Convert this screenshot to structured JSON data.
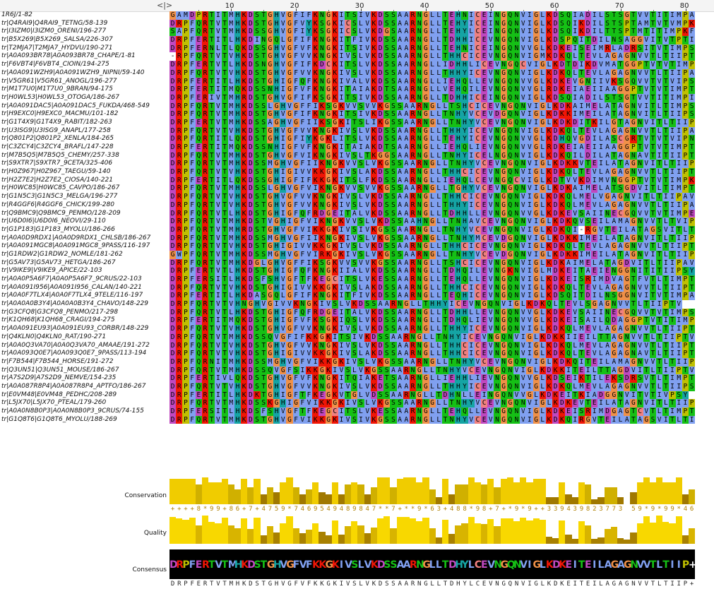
{
  "ruler": {
    "ticks": [
      "10",
      "20",
      "30",
      "40",
      "50",
      "60",
      "70",
      "80"
    ],
    "handle": "<|>"
  },
  "sequences": [
    {
      "name": "1R6J/1-82",
      "seq": "GAMDPRTITMHKDSTGHVGFIFKNGKITSIVKDSSAARNGLLTEHNICEINGQNVIGLKDSQIADILSTSGTVVTITIMPAF"
    },
    {
      "name": "tr|Q4RAI9|Q4RAI9_TETNG/58-139",
      "seq": "DRPFQRTVTMHKDSTGHVGFVYKSGKICSLVKDSSAARNGLLTEHYICEINGQNVIGLKDSQIKDILSTSPTAMTVTVMPKF"
    },
    {
      "name": "tr|I3IZM0|I3IZM0_ORENI/196-277",
      "seq": "SAPFQRTVTMHKDSSGHVGFIYKSGKICSLVKDGSAARNGLLTEHYLCEINGQNVIGLKDSQIKDILTTSPTMTITIMPKF"
    },
    {
      "name": "tr|B5X269|B5X269_SALSA/226-307",
      "seq": "DRPFERTITLHKDINGQLGFIFKNGKITFIVKDSSAARNGLLTDHHICEVNGQNVIGLKDSPQITDILNSAGGVITVTPTI"
    },
    {
      "name": "tr|T2MJA7|T2MJA7_HYDVU/190-271",
      "seq": "DRPFERNLTLQKDSSGHVGFVFKNGKITSIVKDSSAARNGLLTEHNICEINGQNVVGLKDKEISEIMRLADRSITVTIMPSF"
    },
    {
      "name": "tr|A0A093BR78|A0A093BR78_CHAPE/1-81",
      "seq": "-RPFQRTVTVHKDSTGHVGFVVKNGKIVSLVKDSSAARNGLLTHHCICEVNGQNVIGMKDKQLTEVLAGAGNVVTLTIIPTV"
    },
    {
      "name": "tr|F6VBT4|F6VBT4_CIOIN/194-275",
      "seq": "DRPFERTVTLHKDSNGHVGFIFKDCKITSLVKDSSAARNGLLIDHHLICEVNGQCVIGLKDTDIKDVMATGGPTVTVTIMPTE"
    },
    {
      "name": "tr|A0A091WZH9|A0A091WZH9_NIPNI/59-140",
      "seq": "DRPFQRTVTVHKDSTGHVGFVVKNGKIVSLVKDSSAARNGLLTHHYICEVNGQNVIGLKDKQLTEVLAGAGNVVTLTIIPAV"
    },
    {
      "name": "tr|V5GR61|V5GR61_ANOGL/196-277",
      "seq": "DRPFERTITLHKDSTGHIGFQFKNGKIVALVKDSSAARNGLLIEHQLLEVNGQNVVGLKDKEVGNIIVKSGQVVTVTVIPSF"
    },
    {
      "name": "tr|M1T7U0|M1T7U0_9BRAN/94-175",
      "seq": "DRPFERTITMQKDSSNHIGFVFKNGKITAIAKDTSAARNGLLVEHQILEVNGQNVVGLRDKEIAEIIAAGGPTVTVTIMPTY"
    },
    {
      "name": "tr|H0WL53|H0WL53_OTOGA/186-267",
      "seq": "DRPFERIVTMHRDSTGHVGFIFKSGKITSIVKDSSAARNGLLTDHHICEINGQNVIGLKDSQIADILSTSGTVVTITIMPIV"
    },
    {
      "name": "tr|A0A091DAC5|A0A091DAC5_FUKDA/468-549",
      "seq": "DRPFQRTVTMHKDSSLGHVGFFIKSGKVVSVVKGSSAARNGLLTSHCICEVNGQNVIGLKDKAIMELATAGNVITLTIMPSV"
    },
    {
      "name": "tr|H9EXC0|H9EXC0_MACMU/101-182",
      "seq": "DRPFQRTVTMHKDSTGHVGFIFKNGKITSIVKDSSAARNGLLTNHYVCEVDGQNVIGLKDKKIMEILATAGNVITLTIIPSV"
    },
    {
      "name": "tr|G1T4X9|G1T4X9_RABIT/182-263",
      "seq": "DRPFERTVTMHKDSSAGHVGFIIKSGKITSLIKGSSAARNGLLTNHYVCEVNGQNVIGLKDKDITKILGTAGNVITLTIIPSV"
    },
    {
      "name": "tr|U3ISG9|U3ISG9_ANAPL/177-258",
      "seq": "DRPFQRTVTVHKDSTGHVGFVVKNGKIVSLVKDSSAARNGLLTHHYICEVNGQNVIGLKDKQLTEVLAGAGNVVTLTIIPAV"
    },
    {
      "name": "tr|Q801P2|Q801P2_XENLA/184-265",
      "seq": "DRPFQRTITLQKDSTGHIGFIYKGKLITSLVKDSSAARNGLLTEHYICEVNGQNVVGLKDHQVGDILASCGRTVTVTVIPNK"
    },
    {
      "name": "tr|C3ZCY4|C3ZCY4_BRAFL/147-228",
      "seq": "DRPFERTITMQKDSSNHIGFVFKNGKITAIAKDTSAARNGLLIEHQLIEVNGQNVVGLRDKEIAEIIAAGGPTVTVTIMPTY"
    },
    {
      "name": "tr|M7B5Q5|M7B5Q5_CHEMY/257-338",
      "seq": "DRPFQRTVTMHKDSTGHVGFVIKNGKIVSLTKGGSAARNGLLTNHYICELNGQNVIGLKDKQILDILATAGNAVTITIIPTV"
    },
    {
      "name": "tr|S9XTR7|S9XTR7_9CETA/325-406",
      "seq": "DRPFQRTVTMHKDSSMGHVGFIIKNGKVVSLVKGSSAARNGLLTNHYVCEVNGQNVIGLKDKKVTEILATAGNVITLTIIPTV"
    },
    {
      "name": "tr|H0Z967|H0Z967_TAEGU/59-140",
      "seq": "DRPFQRTVTVHKDSTGHIGIVVKKGKIVSLAKDSSAARNGLLTHHCICEVNGQNVIGLKDKQLTEVLAGAGNVVTLTIIPTV"
    },
    {
      "name": "tr|H2Z7E2|H2Z7E2_CIOSA/140-221",
      "seq": "DRPFERTITLQKDSSGHIGFIFKKGKITSLFKDSSAARNGLLIEHQLCEVNGQCVIGLKDTVVKDIMVNGGPTVTVTIMPKF"
    },
    {
      "name": "tr|H0WC85|H0WC85_CAVPO/186-267",
      "seq": "DRPFQRTVTMHKDSSLGHVGFVIKNGKVVSVVKGSSAARNGLLTGHYVCEVNGQNVIGLKDKAIMELATSGDVITLTIMPTV"
    },
    {
      "name": "tr|G1N5C3|G1N5C3_MELGA/196-277",
      "seq": "DRPFQRTVTVHKDSTGHVGFVVKNGKIVSLVKDSSAARNGLLTHHCICEVNGQNVIGLKDKQLMELVGAGNVITLTIIPAV"
    },
    {
      "name": "tr|R4GGF6|R4GGF6_CHICK/199-280",
      "seq": "DRPFQRTVTVHKDSTGHVGFVVKNGKIVSLVKDSSAARNGLLTHHYICEVNGQNVIGLKDKQLMEVLAGAGNVVTLTIIPAV"
    },
    {
      "name": "tr|Q9BMC9|Q9BMC9_PENMO/128-209",
      "seq": "DRPFQRTVTLHKDSTGHIGFQFRDGEITALVKDSSAARNGLLTDHHLLEVNGQNVVGLKDKEVSAIINECGQVVTVTIMPEF"
    },
    {
      "name": "tr|U6D0I6|U6D0I6_NEOVI/29-110",
      "seq": "DRPFQRTVTMHKDSTVGHIGFVIKNGKVVSLVKDSSAAHNGLLTNHAVCEVNGQNVIGLKDKQVSEILAMAGNVVTLTVIPTV"
    },
    {
      "name": "tr|G1P183|G1P183_MYOLU/186-266",
      "seq": "DRPFQRTVTMHRDSTGHVGFVIKKGKIVSIVKGSSAARNGLLTNHYVCEVNGQNVIGLKDKQI-RGVTEILATAGSVITLTIPTV"
    },
    {
      "name": "tr|A0A0D9RDX1|A0A0D9RDX1_CHLSB/186-267",
      "seq": "DRPFQRTVTMHKDSSMGHVGFIIKNGKIVSLVKGSSAARNGLLTNHYMCEVDGQNVIGLKDKKIMEILATAGNVITLTIIPSV"
    },
    {
      "name": "tr|A0A091MGC8|A0A091MGC8_9PASS/116-197",
      "seq": "DRPFQRTVTVHKDSTGHIGIVVKKGKIVSLVKDSSAARNGLLTHHCICEVNGQNVIGLKDKQLTEVLAGAGNVVTLTIIPTV"
    },
    {
      "name": "tr|G1RDW2|G1RDW2_NOMLE/181-262",
      "seq": "GWPFQRTVTMHKDSSMGHVGFVIRKGKIVSLVKGSSAARNGLLTNHYVCEVDGQNVIGLKDKKIMEILATAGNVITLTIIPSV"
    },
    {
      "name": "tr|G5AV73|G5AV73_HETGA/186-267",
      "seq": "DRPFQRTVTMHKDGLGHVGFFIKSGKVVSVVKGSSAARNGLLTSHCICEVNGQNVIGLKDKAIMELATAGDVITLTIIPAV"
    },
    {
      "name": "tr|V9IKE9|V9IKE9_APICE/22-103",
      "seq": "DRPFERTVTLHKDSTGHIGFQFKNGKIIALVKDSSAARNGLLTDHQILEVNGKNVIGLMDKEITAEIENGGNITITIIPSY"
    },
    {
      "name": "tr|A0A0P5A6F7|A0A0P5A6F7_9CRUS/22-103",
      "seq": "DRPFERSITLHKDSFSHVGFTFKEGCITSLVKESSAARNGLLTEHQLLEVNGQNVIGLKDKEISRIMDVAGTFVTLTIMPTF"
    },
    {
      "name": "tr|A0A091I956|A0A091I956_CALAN/140-221",
      "seq": "DRPFQRTVTVHKDSTGHIGIVVKKGKIVSLAKDSSAARNGLLTHHCICEVNGQNVIGLKDKQLTEVLAGAGNVVTLTIIPTV"
    },
    {
      "name": "tr|A0A0F7TLX4|A0A0F7TLX4_9TELE/116-197",
      "seq": "DRPFERTITLHKDASGQLGFIFKNGKITFIVKDSSAARNGLLTEQHICEVNGQNVIGLKDSQITDILNSGGNVITVTIMPAV"
    },
    {
      "name": "tr|A0A0A0B3Y4|A0A0A0B3Y4_CHAVO/148-229",
      "seq": "DRPFQRTVTVHNGHVGIVVKNGKIVSLVKDSSAARNGLLTHHYICEVNGQNVIGLKDKQLTEVLSGAGNVVTLTIIPTV"
    },
    {
      "name": "tr|G3CFQ8|G3CFQ8_PENMO/217-298",
      "seq": "DRPFQRTVTLHKDSTGHIGFQFRDGEITALVKDSSAARNGLLTDHHLLEVNGQNVVGLKDKEVSAIINECGQVVTVTIMPSF"
    },
    {
      "name": "tr|K1QH68|K1QH68_CRAGI/194-275",
      "seq": "DRPFERTITMQKDSTGHIGFVFKSGKIQSLVKDSSAARNGLLTDHQLIEVNGQNVVGLKDKEISAILQDAGGPTVTITIMPTY"
    },
    {
      "name": "tr|A0A091EU93|A0A091EU93_CORBR/148-229",
      "seq": "DRPFQRTVTVHKDSTGHVGFVVKNGKIVSLVKDSSAARNGLLTHHYICEVNGQNVIGLKDKQLMEVLAGAGNVVTLTIIPTV"
    },
    {
      "name": "tr|Q4KLN0|Q4KLN0_RAT/190-271",
      "seq": "DRPFQRTVTMHKDSSQVGFIFKKGKITSIVKDSSAARNGLLTNHYICEVNGQNVIGLKDKKIIEILTTAGNVVTLTIIPTV"
    },
    {
      "name": "tr|A0A0Q3VA70|A0A0Q3VA70_AMAAE/191-272",
      "seq": "DRPFQRTVTVHKDSTGHVGFVVKNGKIVSLVKDSSAARNGLLTHHCICEVNGQNVIGLKDKQLMEVLAGAGNVVTLTIIPTV"
    },
    {
      "name": "tr|A0A093Q0E7|A0A093Q0E7_9PASS/113-194",
      "seq": "DRPFQRTVTVHKDSTGHIGIVVKKGKIVSLAKDSSAARNGLLTHHCICEVNGQNVIGLKDKQLTEVLAGAGNAVTLTIIPTV"
    },
    {
      "name": "tr|F7B544|F7B544_HORSE/191-272",
      "seq": "DRPFQRNITMHKDSSMGHVGFVIKKGKIVSLVKGSSAARNGLLTNHYVCEVNGQNVIGLKDKQITEILAMAGNVVTLTIIPTV"
    },
    {
      "name": "tr|Q3UN51|Q3UN51_MOUSE/186-267",
      "seq": "DRPFQRTVTMHKDSSQVGFSIKKGKIVSLVKGSSAARNGLLTNHYVCEVNGQNVIGLKDKKITEILTTAGDVITLTIIPTV"
    },
    {
      "name": "tr|A7S2D9|A7S2D9_NEMVE/154-235",
      "seq": "DRPFERTIVLQKDSTGHVGFVFKNGKITQIAKETSAARNGLLIEHHLIEVNGQNVVGLKDSEIKTILEKSDRSVTLTIMPTF"
    },
    {
      "name": "tr|A0A087R8P4|A0A087R8P4_APTFO/186-267",
      "seq": "DRPFQRTVTVHKDSTGHVGFVVKNGKIVSLVKDSSAARNGLLTHHYICEVNGQNVIGLKDKQLMEVLAGAGNVVTLTIIPSF"
    },
    {
      "name": "tr|E0VM48|E0VM48_PEDHC/208-289",
      "seq": "DRPFERTITLHKDKTGHIGFTFKEGKVTGLVDSSAARNGLLTDHNLLEINGQNVVGLKDKEITKIADGGNVITVTIVPSY"
    },
    {
      "name": "tr|L5JX70|L5JX70_PTEAL/179-260",
      "seq": "DRPFQRTVTMHKDSSKGHIGFVIKKGKIVSLVKGSSAARNGLLTNHYVCEVNGQNVIGLKDKEVTEILATAGNVITLTIIPTV"
    },
    {
      "name": "tr|A0A0N8B0P3|A0A0N8B0P3_9CRUS/74-155",
      "seq": "DRPFERSITLHKDSFSHVGFTFKEGCITSLVKESSAARNGLLTEHQLLEVNGQNVIGLKDKEISRIMDGAGTCVTLTIMPTF"
    },
    {
      "name": "tr|G1Q8T6|G1Q8T6_MYOLU/188-269",
      "seq": "DRPFQRTVTMHKDSTGHVGFVIKKGKIVSIVKGSSAARNGLLTNHYVCEVNGQNVIGLKDKQIRGVTEILATAGSVITLTIIPTV"
    }
  ],
  "annotations": {
    "conservation_label": "Conservation",
    "quality_label": "Quality",
    "consensus_label": "Consensus",
    "conservation_digits": "++++8*99+86+7+4759*7469549489847**7+**9*63+488*98+7+*9*9++339439823773 59*9*99*46",
    "consensus_seq": "DRPFERTVTMHKDSTGHVGFVFKKGKIVSLVKDSSAARNGLLTDHYLCEVNGQNVIGLKDKEITEILAGAGNVVTLTIIP++"
  },
  "colors": {
    "hydrophobic": "#80a0f0",
    "positive": "#f01505",
    "negative": "#c048c0",
    "polar": "#15c015",
    "cysteine": "#f08080",
    "glycine": "#f09048",
    "proline": "#c0c000",
    "aromatic": "#15a4a4",
    "conservation": "#e8c000",
    "quality": "#f0d000"
  }
}
